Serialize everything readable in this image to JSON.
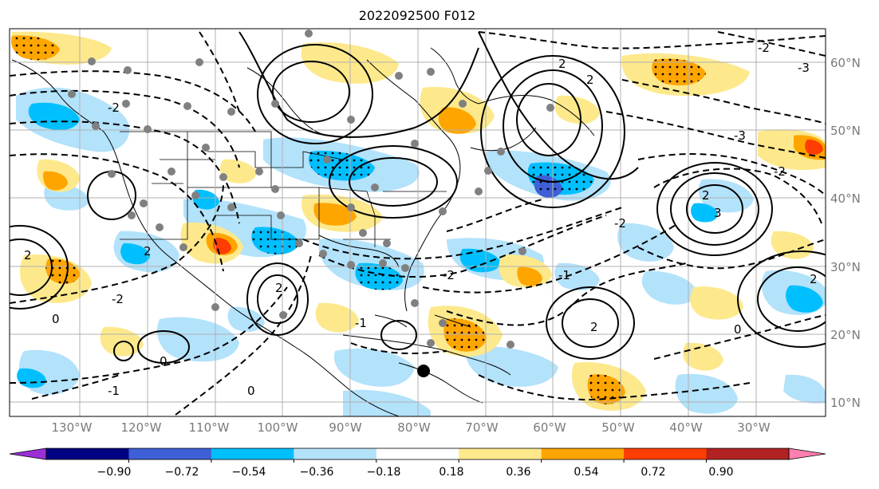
{
  "title": "2022092500 F012",
  "lon_ticks": [
    "130°W",
    "120°W",
    "110°W",
    "100°W",
    "90°W",
    "80°W",
    "70°W",
    "60°W",
    "50°W",
    "40°W",
    "30°W"
  ],
  "lat_ticks": [
    "60°N",
    "50°N",
    "40°N",
    "30°N",
    "20°N",
    "10°N"
  ],
  "colorbar": {
    "tick_labels": [
      "−0.90",
      "−0.72",
      "−0.54",
      "−0.36",
      "−0.18",
      "0.18",
      "0.36",
      "0.54",
      "0.72",
      "0.90"
    ],
    "colors": [
      "#9b30d9",
      "#000080",
      "#3e5fd6",
      "#00bfff",
      "#b3e2fb",
      "#ffffff",
      "#fde98c",
      "#ffa500",
      "#ff3d00",
      "#b22222",
      "#ff7fae"
    ]
  },
  "contour_labels": [
    "2",
    "2",
    "3",
    "-2",
    "-2",
    "-1",
    "0",
    "2",
    "-2",
    "-3",
    "2",
    "2",
    "-2",
    "-3",
    "-2",
    "0",
    "2",
    "-2",
    "0",
    "-1",
    "0",
    "-1",
    "2",
    "2"
  ],
  "colors": {
    "land_line": "#000000",
    "grid": "#b0b0b0",
    "marker_gray": "#808080",
    "marker_black": "#000000"
  }
}
